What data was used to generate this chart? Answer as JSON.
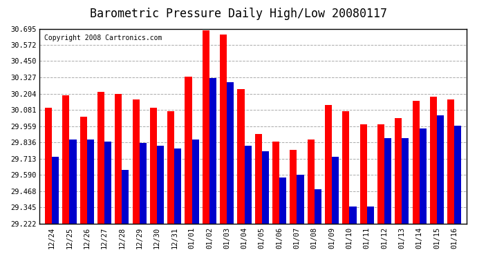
{
  "title": "Barometric Pressure Daily High/Low 20080117",
  "copyright": "Copyright 2008 Cartronics.com",
  "categories": [
    "12/24",
    "12/25",
    "12/26",
    "12/27",
    "12/28",
    "12/29",
    "12/30",
    "12/31",
    "01/01",
    "01/02",
    "01/03",
    "01/04",
    "01/05",
    "01/06",
    "01/07",
    "01/08",
    "01/09",
    "01/10",
    "01/11",
    "01/12",
    "01/13",
    "01/14",
    "01/15",
    "01/16"
  ],
  "highs": [
    30.1,
    30.19,
    30.03,
    30.22,
    30.2,
    30.16,
    30.1,
    30.07,
    30.33,
    30.68,
    30.65,
    30.24,
    29.9,
    29.84,
    29.78,
    29.86,
    30.12,
    30.07,
    29.97,
    29.97,
    30.02,
    30.15,
    30.18,
    30.16
  ],
  "lows": [
    29.73,
    29.86,
    29.86,
    29.84,
    29.63,
    29.83,
    29.81,
    29.79,
    29.86,
    30.32,
    30.29,
    29.81,
    29.77,
    29.57,
    29.59,
    29.48,
    29.73,
    29.35,
    29.35,
    29.87,
    29.87,
    29.94,
    30.04,
    29.96
  ],
  "high_color": "#ff0000",
  "low_color": "#0000cc",
  "bg_color": "#ffffff",
  "plot_bg_color": "#ffffff",
  "grid_color": "#aaaaaa",
  "yticks": [
    29.222,
    29.345,
    29.468,
    29.59,
    29.713,
    29.836,
    29.959,
    30.081,
    30.204,
    30.327,
    30.45,
    30.572,
    30.695
  ],
  "ymin": 29.222,
  "ymax": 30.695,
  "title_fontsize": 12,
  "copyright_fontsize": 7,
  "tick_fontsize": 7.5
}
